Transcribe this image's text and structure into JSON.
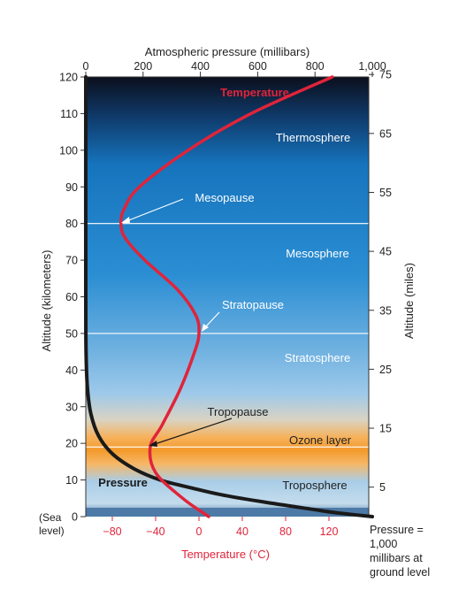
{
  "colors": {
    "temperature_curve": "#e0243a",
    "pressure_curve": "#1a1a1a",
    "temperature_text": "#e0243a",
    "axis_text": "#222222",
    "band_sky_top": "#0d1220",
    "band_sky_mid": "#1679c3",
    "band_sky_low": "#5aa5dc",
    "band_ozone": "#f3a43a",
    "band_ground": "#3a6fa8"
  },
  "top_axis": {
    "title": "Atmospheric pressure (millibars)",
    "ticks": [
      "0",
      "200",
      "400",
      "600",
      "800",
      "1,000"
    ]
  },
  "left_axis": {
    "title": "Altitude (kilometers)",
    "ticks": [
      "120",
      "110",
      "100",
      "90",
      "80",
      "70",
      "60",
      "50",
      "40",
      "30",
      "20",
      "10"
    ],
    "sea_level_tick": "0",
    "sea_level_label_1": "(Sea",
    "sea_level_label_2": "level)"
  },
  "right_axis": {
    "title": "Altitude (miles)",
    "ticks": [
      "75",
      "65",
      "55",
      "45",
      "35",
      "25",
      "15",
      "5"
    ]
  },
  "bottom_axis": {
    "title": "Temperature (°C)",
    "ticks": [
      "−80",
      "−40",
      "0",
      "40",
      "80",
      "120"
    ]
  },
  "pressure_note": {
    "line1": "Pressure =",
    "line2": "1,000",
    "line3": "millibars at",
    "line4": "ground level"
  },
  "layers": {
    "thermosphere": "Thermosphere",
    "mesosphere": "Mesosphere",
    "stratosphere": "Stratosphere",
    "ozone": "Ozone layer",
    "troposphere": "Troposphere"
  },
  "labels": {
    "temperature": "Temperature",
    "pressure": "Pressure",
    "mesopause": "Mesopause",
    "stratopause": "Stratopause",
    "tropopause": "Tropopause"
  },
  "chart_data": {
    "type": "line",
    "xlabel": "Temperature (°C)",
    "ylabel": "Altitude (kilometers)",
    "ylim": [
      0,
      120
    ],
    "xlim": [
      -100,
      140
    ],
    "series": [
      {
        "name": "Temperature",
        "x_unit": "°C",
        "points": [
          {
            "alt": 0,
            "t": 9
          },
          {
            "alt": 5,
            "t": -15
          },
          {
            "alt": 12,
            "t": -40
          },
          {
            "alt": 19,
            "t": -45
          },
          {
            "alt": 25,
            "t": -34
          },
          {
            "alt": 35,
            "t": -17
          },
          {
            "alt": 45,
            "t": -4
          },
          {
            "alt": 50,
            "t": 0
          },
          {
            "alt": 55,
            "t": -3
          },
          {
            "alt": 62,
            "t": -20
          },
          {
            "alt": 70,
            "t": -50
          },
          {
            "alt": 76,
            "t": -68
          },
          {
            "alt": 80,
            "t": -72
          },
          {
            "alt": 84,
            "t": -69
          },
          {
            "alt": 90,
            "t": -55
          },
          {
            "alt": 100,
            "t": -10
          },
          {
            "alt": 110,
            "t": 48
          },
          {
            "alt": 120,
            "t": 123
          }
        ]
      },
      {
        "name": "Pressure",
        "x_unit": "millibars",
        "points": [
          {
            "alt": 0,
            "p": 1000
          },
          {
            "alt": 1,
            "p": 880
          },
          {
            "alt": 2,
            "p": 790
          },
          {
            "alt": 4,
            "p": 620
          },
          {
            "alt": 6,
            "p": 470
          },
          {
            "alt": 8,
            "p": 360
          },
          {
            "alt": 10,
            "p": 260
          },
          {
            "alt": 13,
            "p": 170
          },
          {
            "alt": 17,
            "p": 95
          },
          {
            "alt": 22,
            "p": 45
          },
          {
            "alt": 28,
            "p": 18
          },
          {
            "alt": 35,
            "p": 6
          },
          {
            "alt": 45,
            "p": 1
          },
          {
            "alt": 60,
            "p": 0
          },
          {
            "alt": 120,
            "p": 0
          }
        ]
      }
    ],
    "reference_lines_km": [
      80,
      50,
      19
    ]
  }
}
